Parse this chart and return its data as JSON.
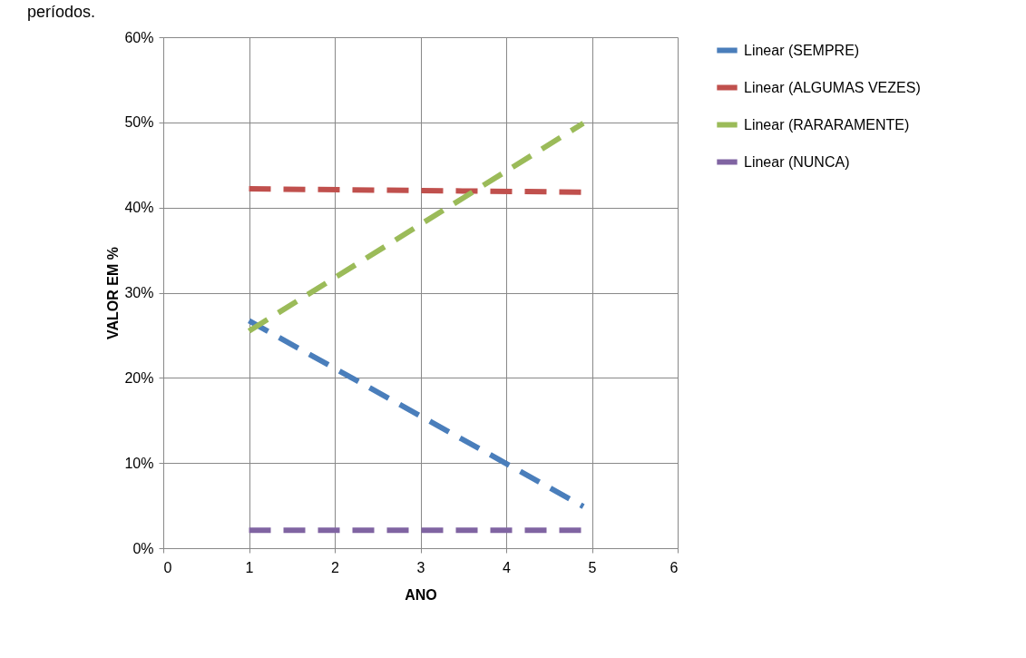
{
  "chart_data": {
    "type": "line",
    "annotations": [
      "períodos."
    ],
    "xlabel": "ANO",
    "ylabel": "VALOR EM %",
    "x": [
      1,
      4.9
    ],
    "series": [
      {
        "name": "Linear (SEMPRE)",
        "color": "#4a7ebb",
        "values": [
          26.7,
          4.9
        ]
      },
      {
        "name": "Linear (ALGUMAS VEZES)",
        "color": "#c0504d",
        "values": [
          42.2,
          41.8
        ]
      },
      {
        "name": "Linear (RARARAMENTE)",
        "color": "#9bbb59",
        "values": [
          25.5,
          49.9
        ]
      },
      {
        "name": "Linear (NUNCA)",
        "color": "#8064a2",
        "values": [
          2.1,
          2.1
        ]
      }
    ],
    "xlim": [
      0,
      6
    ],
    "xticks": [
      0,
      1,
      2,
      3,
      4,
      5,
      6
    ],
    "ylim": [
      0,
      60
    ],
    "yticks": [
      {
        "value": 0,
        "label": "0%"
      },
      {
        "value": 10,
        "label": "10%"
      },
      {
        "value": 20,
        "label": "20%"
      },
      {
        "value": 30,
        "label": "30%"
      },
      {
        "value": 40,
        "label": "40%"
      },
      {
        "value": 50,
        "label": "50%"
      },
      {
        "value": 60,
        "label": "60%"
      }
    ],
    "grid": true,
    "legend": "right",
    "line_style": "dashed",
    "marker": "none"
  }
}
